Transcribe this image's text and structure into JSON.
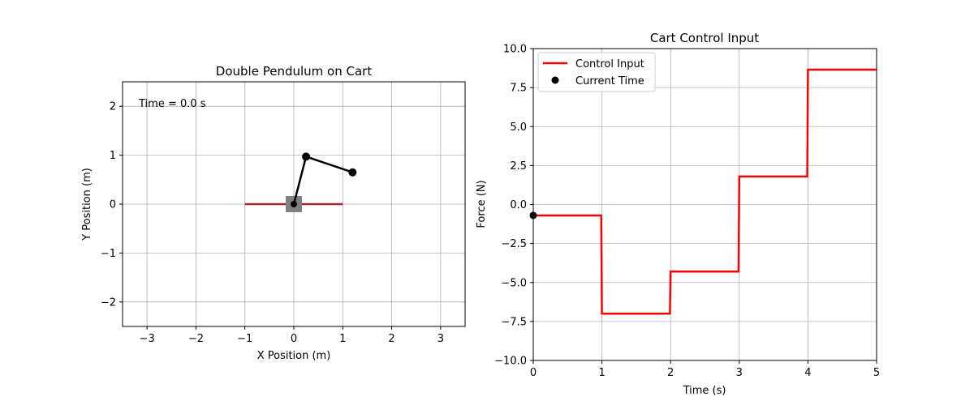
{
  "figure": {
    "background": "#ffffff"
  },
  "chart_data": [
    {
      "type": "scatter",
      "title": "Double Pendulum on Cart",
      "xlabel": "X Position (m)",
      "ylabel": "Y Position (m)",
      "xlim": [
        -3.5,
        3.5
      ],
      "ylim": [
        -2.5,
        2.5
      ],
      "xticks": [
        -3,
        -2,
        -1,
        0,
        1,
        2,
        3
      ],
      "yticks": [
        -2,
        -1,
        0,
        1,
        2
      ],
      "grid": true,
      "annotation": "Time = 0.0 s",
      "track": {
        "x": [
          -1,
          1
        ],
        "y": 0,
        "color": "#a52a2a"
      },
      "cart": {
        "x": 0,
        "y": 0,
        "color": "#808080"
      },
      "pendulum": {
        "points": [
          {
            "x": 0,
            "y": 0
          },
          {
            "x": 0.25,
            "y": 0.97
          },
          {
            "x": 1.2,
            "y": 0.65
          }
        ],
        "color": "#000000"
      }
    },
    {
      "type": "line",
      "title": "Cart Control Input",
      "xlabel": "Time (s)",
      "ylabel": "Force (N)",
      "xlim": [
        0,
        5
      ],
      "ylim": [
        -10,
        10
      ],
      "xticks": [
        0,
        1,
        2,
        3,
        4,
        5
      ],
      "yticks": [
        -10.0,
        -7.5,
        -5.0,
        -2.5,
        0.0,
        2.5,
        5.0,
        7.5,
        10.0
      ],
      "ytick_labels": [
        "−10.0",
        "−7.5",
        "−5.0",
        "−2.5",
        "0.0",
        "2.5",
        "5.0",
        "7.5",
        "10.0"
      ],
      "grid": true,
      "legend": {
        "location": "top-left",
        "entries": [
          "Control Input",
          "Current Time"
        ]
      },
      "series": [
        {
          "name": "Control Input",
          "color": "#ff0000",
          "x": [
            0,
            0.99,
            1.0,
            1.99,
            2.0,
            2.99,
            3.0,
            3.99,
            4.0,
            5.0
          ],
          "y": [
            -0.7,
            -0.7,
            -7.0,
            -7.0,
            -4.3,
            -4.3,
            1.8,
            1.8,
            8.65,
            8.65
          ]
        },
        {
          "name": "Current Time",
          "color": "#000000",
          "x": [
            0
          ],
          "y": [
            -0.7
          ]
        }
      ]
    }
  ]
}
